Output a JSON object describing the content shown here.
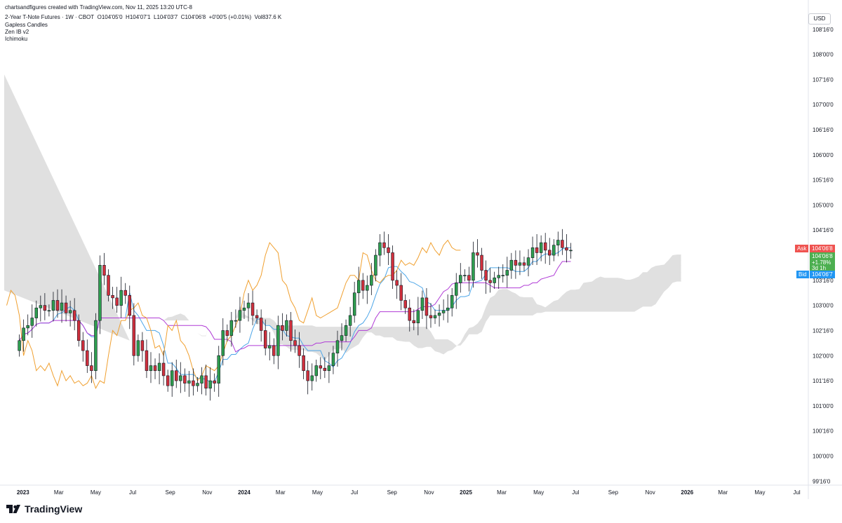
{
  "header": {
    "created_by": "chartsandfigures created with TradingView.com, Nov 11, 2025 13:20 UTC-8",
    "symbol": "2-Year T-Note Futures · 1W · CBOT",
    "ohlc": {
      "o_label": "O",
      "o": "104'05'0",
      "h_label": "H",
      "h": "104'07'1",
      "l_label": "L",
      "l": "104'03'7",
      "c_label": "C",
      "c": "104'06'8",
      "change": "+0'00'5 (+0.01%)",
      "vol_label": "Vol",
      "vol": "837.6 K"
    },
    "indicators": [
      "Gapless Candles",
      "Zen IB v2",
      "Ichimoku"
    ]
  },
  "currency": "USD",
  "footer": {
    "brand": "TradingView"
  },
  "price_tags": {
    "ask_label": "Ask",
    "ask": "104'06'8",
    "last": "104'06'8",
    "change_pct": "+1.78%",
    "time_left": "3d 1h",
    "bid_label": "Bid",
    "bid": "104'06'7"
  },
  "colors": {
    "up": "#26a69a",
    "up_fill": "#2e9e4f",
    "down": "#d0303d",
    "tenkan": "#4da6e8",
    "kijun": "#b03bd6",
    "lagging": "#f0a030",
    "cloud": "#d8d8d8",
    "ask": "#ef5350",
    "last": "#4caf50",
    "bid": "#2196f3"
  },
  "chart_data": {
    "type": "candlestick",
    "timeframe": "1W",
    "y_axis": {
      "ticks": [
        "108'16'0",
        "108'00'0",
        "107'16'0",
        "107'00'0",
        "106'16'0",
        "106'00'0",
        "105'16'0",
        "105'00'0",
        "104'16'0",
        "104'00'0",
        "103'16'0",
        "103'00'0",
        "102'16'0",
        "102'00'0",
        "101'16'0",
        "101'00'0",
        "100'16'0",
        "100'00'0",
        "99'16'0"
      ],
      "tick_values": [
        108.5,
        108,
        107.5,
        107,
        106.5,
        106,
        105.5,
        105,
        104.5,
        104,
        103.5,
        103,
        102.5,
        102,
        101.5,
        101,
        100.5,
        100,
        99.5
      ],
      "range": [
        99.42,
        109.0
      ]
    },
    "x_axis": {
      "ticks": [
        "2023",
        "Mar",
        "May",
        "Jul",
        "Sep",
        "Nov",
        "2024",
        "Mar",
        "May",
        "Jul",
        "Sep",
        "Nov",
        "2025",
        "Mar",
        "May",
        "Jul",
        "Sep",
        "Nov",
        "2026",
        "Mar",
        "May",
        "Jul"
      ],
      "tick_dates": [
        "2023-01-01",
        "2023-03-01",
        "2023-05-01",
        "2023-07-01",
        "2023-09-01",
        "2023-11-01",
        "2024-01-01",
        "2024-03-01",
        "2024-05-01",
        "2024-07-01",
        "2024-09-01",
        "2024-11-01",
        "2025-01-01",
        "2025-03-01",
        "2025-05-01",
        "2025-07-01",
        "2025-09-01",
        "2025-11-01",
        "2026-01-01",
        "2026-03-01",
        "2026-05-01",
        "2026-07-01"
      ],
      "bold_ticks": [
        "2023",
        "2024",
        "2025",
        "2026"
      ]
    },
    "candles_approx": [
      102.3,
      102.55,
      102.6,
      102.75,
      102.95,
      103.0,
      102.9,
      102.9,
      103.1,
      102.9,
      103.05,
      102.85,
      102.9,
      102.7,
      102.3,
      102.1,
      101.8,
      101.7,
      102.7,
      103.8,
      103.6,
      103.2,
      103.15,
      103.0,
      103.3,
      103.2,
      102.8,
      102.0,
      102.3,
      102.1,
      101.7,
      101.8,
      101.7,
      101.85,
      101.6,
      101.4,
      101.7,
      101.5,
      101.6,
      101.45,
      101.5,
      101.4,
      101.45,
      101.6,
      101.35,
      101.5,
      101.45,
      102.0,
      102.5,
      102.4,
      102.7,
      102.7,
      102.9,
      102.95,
      103.05,
      102.8,
      102.75,
      102.5,
      102.15,
      102.2,
      102.0,
      102.6,
      102.5,
      102.7,
      102.3,
      102.2,
      102.0,
      101.7,
      101.5,
      101.6,
      101.8,
      101.75,
      101.7,
      101.8,
      102.05,
      102.3,
      102.4,
      102.6,
      102.8,
      103.25,
      103.5,
      103.3,
      103.4,
      103.6,
      104.0,
      104.25,
      104.15,
      104.05,
      103.5,
      103.4,
      103.1,
      102.95,
      102.7,
      102.65,
      102.9,
      103.15,
      102.8,
      102.75,
      102.8,
      102.85,
      102.9,
      102.95,
      103.2,
      103.45,
      103.6,
      103.6,
      103.5,
      104.05,
      104.0,
      103.7,
      103.5,
      103.45,
      103.55,
      103.6,
      103.6,
      103.7,
      103.9,
      103.8,
      103.85,
      103.8,
      103.95,
      104.15,
      104.05,
      104.25,
      104.1,
      104.0,
      104.2,
      104.3,
      104.15,
      104.1,
      104.1
    ],
    "ichimoku": {
      "tenkan": "blue line",
      "kijun": "purple line",
      "chikou": "orange line",
      "cloud": "grey span"
    }
  }
}
